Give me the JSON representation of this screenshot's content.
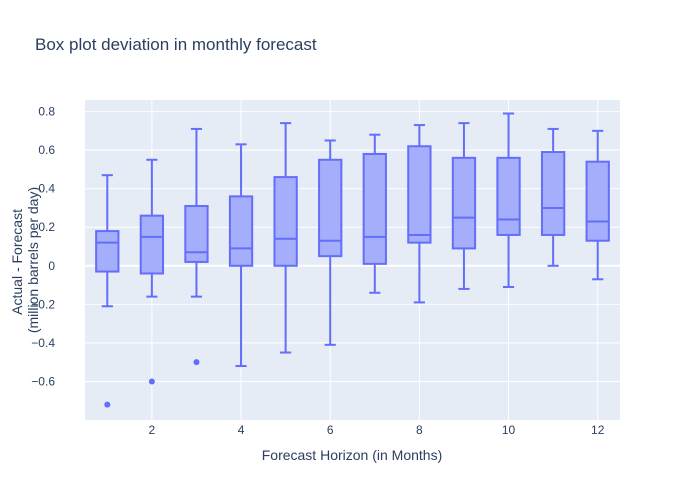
{
  "chart_data": {
    "type": "box",
    "title": "Box plot deviation in monthly forecast",
    "xlabel": "Forecast Horizon (in Months)",
    "ylabel_lines": [
      "Actual - Forecast",
      "(million barrels per day)"
    ],
    "xlim": [
      0.5,
      12.5
    ],
    "ylim": [
      -0.8,
      0.86
    ],
    "x_ticks": [
      2,
      4,
      6,
      8,
      10,
      12
    ],
    "y_ticks": [
      -0.6,
      -0.4,
      -0.2,
      0,
      0.2,
      0.4,
      0.6,
      0.8
    ],
    "y_tick_labels": [
      "−0.6",
      "−0.4",
      "−0.2",
      "0",
      "0.2",
      "0.4",
      "0.6",
      "0.8"
    ],
    "grid": true,
    "plot_bg_color": "#e5ecf6",
    "box_fill_color": "#a5aefa",
    "box_line_color": "#636efa",
    "boxes": [
      {
        "x": 1,
        "whisker_low": -0.21,
        "q1": -0.03,
        "median": 0.12,
        "q3": 0.18,
        "whisker_high": 0.47,
        "outliers": [
          -0.72
        ]
      },
      {
        "x": 2,
        "whisker_low": -0.16,
        "q1": -0.04,
        "median": 0.15,
        "q3": 0.26,
        "whisker_high": 0.55,
        "outliers": [
          -0.6
        ]
      },
      {
        "x": 3,
        "whisker_low": -0.16,
        "q1": 0.02,
        "median": 0.07,
        "q3": 0.31,
        "whisker_high": 0.71,
        "outliers": [
          -0.5
        ]
      },
      {
        "x": 4,
        "whisker_low": -0.52,
        "q1": 0.0,
        "median": 0.09,
        "q3": 0.36,
        "whisker_high": 0.63,
        "outliers": []
      },
      {
        "x": 5,
        "whisker_low": -0.45,
        "q1": 0.0,
        "median": 0.14,
        "q3": 0.46,
        "whisker_high": 0.74,
        "outliers": []
      },
      {
        "x": 6,
        "whisker_low": -0.41,
        "q1": 0.05,
        "median": 0.13,
        "q3": 0.55,
        "whisker_high": 0.65,
        "outliers": []
      },
      {
        "x": 7,
        "whisker_low": -0.14,
        "q1": 0.01,
        "median": 0.15,
        "q3": 0.58,
        "whisker_high": 0.68,
        "outliers": []
      },
      {
        "x": 8,
        "whisker_low": -0.19,
        "q1": 0.12,
        "median": 0.16,
        "q3": 0.62,
        "whisker_high": 0.73,
        "outliers": []
      },
      {
        "x": 9,
        "whisker_low": -0.12,
        "q1": 0.09,
        "median": 0.25,
        "q3": 0.56,
        "whisker_high": 0.74,
        "outliers": []
      },
      {
        "x": 10,
        "whisker_low": -0.11,
        "q1": 0.16,
        "median": 0.24,
        "q3": 0.56,
        "whisker_high": 0.79,
        "outliers": []
      },
      {
        "x": 11,
        "whisker_low": 0.0,
        "q1": 0.16,
        "median": 0.3,
        "q3": 0.59,
        "whisker_high": 0.71,
        "outliers": []
      },
      {
        "x": 12,
        "whisker_low": -0.07,
        "q1": 0.13,
        "median": 0.23,
        "q3": 0.54,
        "whisker_high": 0.7,
        "outliers": []
      }
    ]
  }
}
